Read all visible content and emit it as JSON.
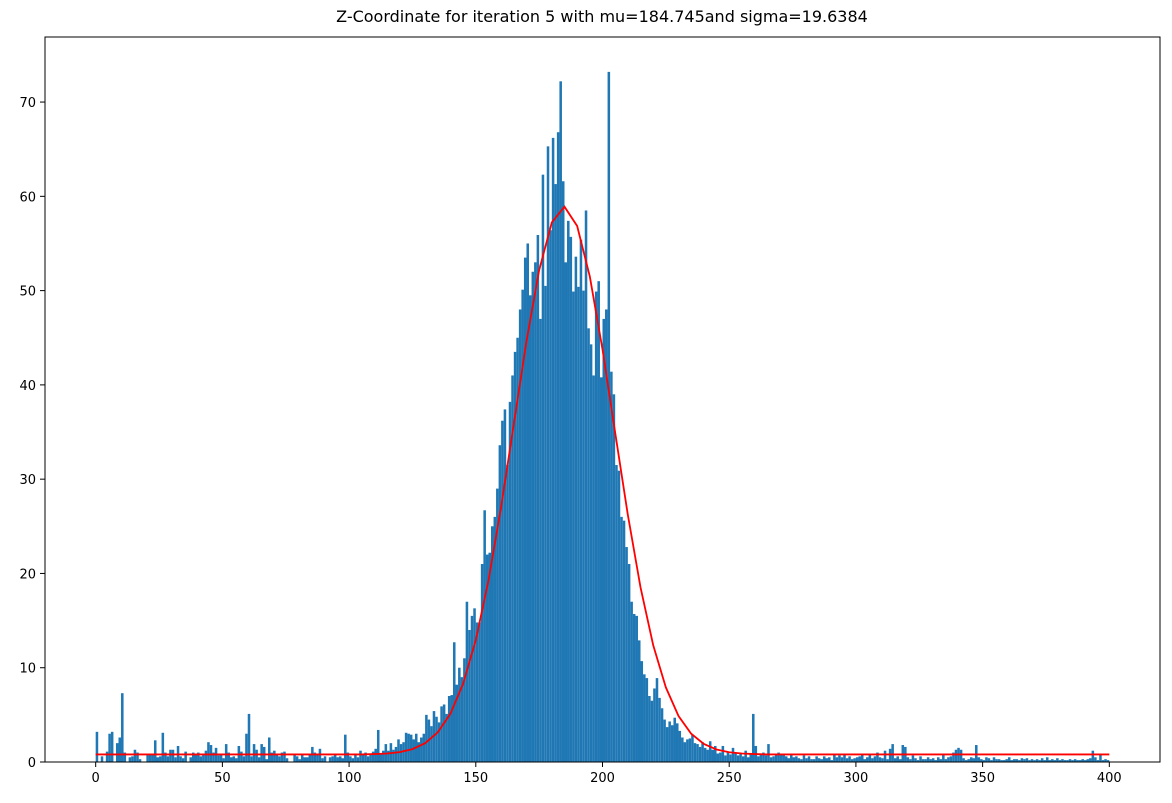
{
  "chart_data": {
    "type": "histogram",
    "title": "Z-Coordinate for iteration 5 with mu=184.745and sigma=19.6384",
    "color": "#1f77b4",
    "bins": [
      0,
      1,
      2,
      3,
      4,
      5,
      6,
      7,
      8,
      9,
      10,
      11,
      12,
      13,
      14,
      15,
      16,
      17,
      18,
      19,
      20,
      21,
      22,
      23,
      24,
      25,
      26,
      27,
      28,
      29,
      30,
      31,
      32,
      33,
      34,
      35,
      36,
      37,
      38,
      39,
      40,
      41,
      42,
      43,
      44,
      45,
      46,
      47,
      48,
      49,
      50,
      51,
      52,
      53,
      54,
      55,
      56,
      57,
      58,
      59,
      60,
      61,
      62,
      63,
      64,
      65,
      66,
      67,
      68,
      69,
      70,
      71,
      72,
      73,
      74,
      75,
      76,
      77,
      78,
      79,
      80,
      81,
      82,
      83,
      84,
      85,
      86,
      87,
      88,
      89,
      90,
      91,
      92,
      93,
      94,
      95,
      96,
      97,
      98,
      99,
      100,
      101,
      102,
      103,
      104,
      105,
      106,
      107,
      108,
      109,
      110,
      111,
      112,
      113,
      114,
      115,
      116,
      117,
      118,
      119,
      120,
      121,
      122,
      123,
      124,
      125,
      126,
      127,
      128,
      129,
      130,
      131,
      132,
      133,
      134,
      135,
      136,
      137,
      138,
      139,
      140,
      141,
      142,
      143,
      144,
      145,
      146,
      147,
      148,
      149,
      150,
      151,
      152,
      153,
      154,
      155,
      156,
      157,
      158,
      159,
      160,
      161,
      162,
      163,
      164,
      165,
      166,
      167,
      168,
      169,
      170,
      171,
      172,
      173,
      174,
      175,
      176,
      177,
      178,
      179,
      180,
      181,
      182,
      183,
      184,
      185,
      186,
      187,
      188,
      189,
      190,
      191,
      192,
      193,
      194,
      195,
      196,
      197,
      198,
      199,
      200,
      201,
      202,
      203,
      204,
      205,
      206,
      207,
      208,
      209,
      210,
      211,
      212,
      213,
      214,
      215,
      216,
      217,
      218,
      219,
      220,
      221,
      222,
      223,
      224,
      225,
      226,
      227,
      228,
      229,
      230,
      231,
      232,
      233,
      234,
      235,
      236,
      237,
      238,
      239,
      240,
      241,
      242,
      243,
      244,
      245,
      246,
      247,
      248,
      249,
      250,
      251,
      252,
      253,
      254,
      255,
      256,
      257,
      258,
      259,
      260,
      261,
      262,
      263,
      264,
      265,
      266,
      267,
      268,
      269,
      270,
      271,
      272,
      273,
      274,
      275,
      276,
      277,
      278,
      279,
      280,
      281,
      282,
      283,
      284,
      285,
      286,
      287,
      288,
      289,
      290,
      291,
      292,
      293,
      294,
      295,
      296,
      297,
      298,
      299,
      300,
      301,
      302,
      303,
      304,
      305,
      306,
      307,
      308,
      309,
      310,
      311,
      312,
      313,
      314,
      315,
      316,
      317,
      318,
      319,
      320,
      321,
      322,
      323,
      324,
      325,
      326,
      327,
      328,
      329,
      330,
      331,
      332,
      333,
      334,
      335,
      336,
      337,
      338,
      339,
      340,
      341,
      342,
      343,
      344,
      345,
      346,
      347,
      348,
      349,
      350,
      351,
      352,
      353,
      354,
      355,
      356,
      357,
      358,
      359,
      360,
      361,
      362,
      363,
      364,
      365,
      366,
      367,
      368,
      369,
      370,
      371,
      372,
      373,
      374,
      375,
      376,
      377,
      378,
      379,
      380,
      381,
      382,
      383,
      384,
      385,
      386,
      387,
      388,
      389,
      390,
      391,
      392,
      393,
      394,
      395,
      396,
      397,
      398,
      399,
      400
    ],
    "values": [
      3.2,
      0,
      0.6,
      0,
      1.1,
      3.0,
      3.2,
      0,
      2.0,
      2.6,
      7.3,
      1.0,
      0,
      0.5,
      0.6,
      1.3,
      1.0,
      0.3,
      0,
      0,
      0.8,
      0.8,
      0.8,
      2.3,
      0.5,
      0.6,
      3.1,
      1.0,
      0.6,
      1.3,
      1.3,
      0.5,
      1.7,
      0.6,
      0.4,
      1.1,
      0,
      0.5,
      1.0,
      0.8,
      1.0,
      0.6,
      0.8,
      1.2,
      2.1,
      1.8,
      1.0,
      1.5,
      0.7,
      0.9,
      0.4,
      1.9,
      1.0,
      0.5,
      0.6,
      0.4,
      1.7,
      1.1,
      0.6,
      3.0,
      5.1,
      0.6,
      1.9,
      1.3,
      0.5,
      1.9,
      1.6,
      0.3,
      2.6,
      1.0,
      1.2,
      0.9,
      0.6,
      1.0,
      1.1,
      0.4,
      0,
      0,
      0.8,
      0.6,
      0.3,
      0.8,
      0.5,
      0.5,
      0.8,
      1.6,
      1.0,
      0.8,
      1.4,
      0.4,
      0.6,
      0,
      0.5,
      0.6,
      0.8,
      0.5,
      0.6,
      0.4,
      2.9,
      1.0,
      0.6,
      0.4,
      0.9,
      0.5,
      1.2,
      0.9,
      1.0,
      0.6,
      0.8,
      1.1,
      1.4,
      3.4,
      0.9,
      1.2,
      1.9,
      1.2,
      2.0,
      1.3,
      1.6,
      2.4,
      1.9,
      2.1,
      3.1,
      3.0,
      2.9,
      2.4,
      3.0,
      2.1,
      2.6,
      3.0,
      5.0,
      4.5,
      3.8,
      5.4,
      4.8,
      4.2,
      5.9,
      6.1,
      5.1,
      7.0,
      7.1,
      12.7,
      8.2,
      10.0,
      9.0,
      11.0,
      17.0,
      14.0,
      15.5,
      16.3,
      14.8,
      14.8,
      21.0,
      26.7,
      22.0,
      22.2,
      25.0,
      26.0,
      29.0,
      33.6,
      36.2,
      37.4,
      31.5,
      38.2,
      41.0,
      43.5,
      45.0,
      48.0,
      50.1,
      53.5,
      55.0,
      49.5,
      52.0,
      53.0,
      55.9,
      47.0,
      62.3,
      50.5,
      65.3,
      56.4,
      66.2,
      61.3,
      66.8,
      72.2,
      61.6,
      53.0,
      57.4,
      55.7,
      49.9,
      53.6,
      50.4,
      55.4,
      50.0,
      58.5,
      46.0,
      44.3,
      41.0,
      49.9,
      51.0,
      40.8,
      47.0,
      48.0,
      73.2,
      41.4,
      39.0,
      31.5,
      30.9,
      26.0,
      25.6,
      22.8,
      21.0,
      17.0,
      15.7,
      15.5,
      12.9,
      10.7,
      9.3,
      8.9,
      7.0,
      6.5,
      7.8,
      8.9,
      6.8,
      5.7,
      4.5,
      3.7,
      4.3,
      3.9,
      4.7,
      4.1,
      3.3,
      2.6,
      2.1,
      2.4,
      2.5,
      2.9,
      2.0,
      1.9,
      1.6,
      2.1,
      1.5,
      1.3,
      2.2,
      1.3,
      1.7,
      0.9,
      1.0,
      1.7,
      0.7,
      1.1,
      0.8,
      1.5,
      1.0,
      0.7,
      0.9,
      0.6,
      1.2,
      0.5,
      0.9,
      5.1,
      1.7,
      0.6,
      0.9,
      1.0,
      0.7,
      1.9,
      0.5,
      0.6,
      0.9,
      1.0,
      0.8,
      0.9,
      0.6,
      0.4,
      0.8,
      0.5,
      0.6,
      0.4,
      0.3,
      0.7,
      0.4,
      0.6,
      0.3,
      0.3,
      0.6,
      0.4,
      0.3,
      0.6,
      0.4,
      0.5,
      0.2,
      0.8,
      0.5,
      0.7,
      0.5,
      0.9,
      0.4,
      0.6,
      0.3,
      0.4,
      0.5,
      0.6,
      0.8,
      0.3,
      0.5,
      0.9,
      0.4,
      0.6,
      1.0,
      0.5,
      0.4,
      1.2,
      0.3,
      1.4,
      1.9,
      0.4,
      0.6,
      0.3,
      1.8,
      1.6,
      0.5,
      0.3,
      0.7,
      0.4,
      0.2,
      0.6,
      0.3,
      0.3,
      0.5,
      0.3,
      0.4,
      0.2,
      0.5,
      0.3,
      0.8,
      0.3,
      0.5,
      0.6,
      1.0,
      1.3,
      1.5,
      1.3,
      0.4,
      0.2,
      0.3,
      0.5,
      0.4,
      1.8,
      0.5,
      0.3,
      0.2,
      0.5,
      0.4,
      0.2,
      0.5,
      0.3,
      0.3,
      0.2,
      0.2,
      0.3,
      0.5,
      0.2,
      0.3,
      0.3,
      0.2,
      0.4,
      0.3,
      0.4,
      0.2,
      0.3,
      0.2,
      0.3,
      0.2,
      0.4,
      0.2,
      0.5,
      0.2,
      0.3,
      0.2,
      0.4,
      0.2,
      0.3,
      0.2,
      0.2,
      0.3,
      0.2,
      0.3,
      0.2,
      0.2,
      0.3,
      0.2,
      0.3,
      0.4,
      1.2,
      0.5,
      0.2,
      0.9,
      0.2,
      0.3,
      0.2
    ],
    "overlay": {
      "type": "line",
      "color": "#ff0000",
      "x": [
        0,
        5,
        10,
        15,
        20,
        25,
        30,
        35,
        40,
        45,
        50,
        55,
        60,
        65,
        70,
        75,
        80,
        85,
        90,
        95,
        100,
        105,
        110,
        115,
        120,
        125,
        130,
        135,
        140,
        145,
        150,
        155,
        160,
        165,
        170,
        175,
        180,
        185,
        190,
        195,
        200,
        205,
        210,
        215,
        220,
        225,
        230,
        235,
        240,
        245,
        250,
        255,
        260,
        265,
        270,
        275,
        280,
        285,
        290,
        295,
        300,
        305,
        310,
        315,
        320,
        325,
        330,
        335,
        340,
        345,
        350,
        355,
        360,
        365,
        370,
        375,
        380,
        385,
        390,
        395,
        400
      ],
      "values": [
        0.8,
        0.8,
        0.8,
        0.8,
        0.8,
        0.8,
        0.8,
        0.8,
        0.8,
        0.8,
        0.8,
        0.8,
        0.8,
        0.8,
        0.8,
        0.8,
        0.8,
        0.8,
        0.8,
        0.8,
        0.8,
        0.8,
        0.84,
        0.9,
        1.05,
        1.37,
        1.99,
        3.15,
        5.13,
        8.3,
        12.94,
        19.25,
        27.07,
        35.85,
        44.63,
        52.17,
        57.23,
        58.9,
        56.85,
        51.49,
        43.77,
        34.93,
        26.21,
        18.53,
        12.4,
        7.91,
        4.88,
        3.0,
        1.91,
        1.33,
        1.03,
        0.9,
        0.84,
        0.8,
        0.8,
        0.8,
        0.8,
        0.8,
        0.8,
        0.8,
        0.8,
        0.8,
        0.8,
        0.8,
        0.8,
        0.8,
        0.8,
        0.8,
        0.8,
        0.8,
        0.8,
        0.8,
        0.8,
        0.8,
        0.8,
        0.8,
        0.8,
        0.8,
        0.8,
        0.8,
        0.8
      ]
    },
    "xlim": [
      -20,
      420
    ],
    "ylim": [
      0,
      76.9
    ],
    "xticks": [
      0,
      50,
      100,
      150,
      200,
      250,
      300,
      350,
      400
    ],
    "yticks": [
      0,
      10,
      20,
      30,
      40,
      50,
      60,
      70
    ],
    "grid": false
  }
}
